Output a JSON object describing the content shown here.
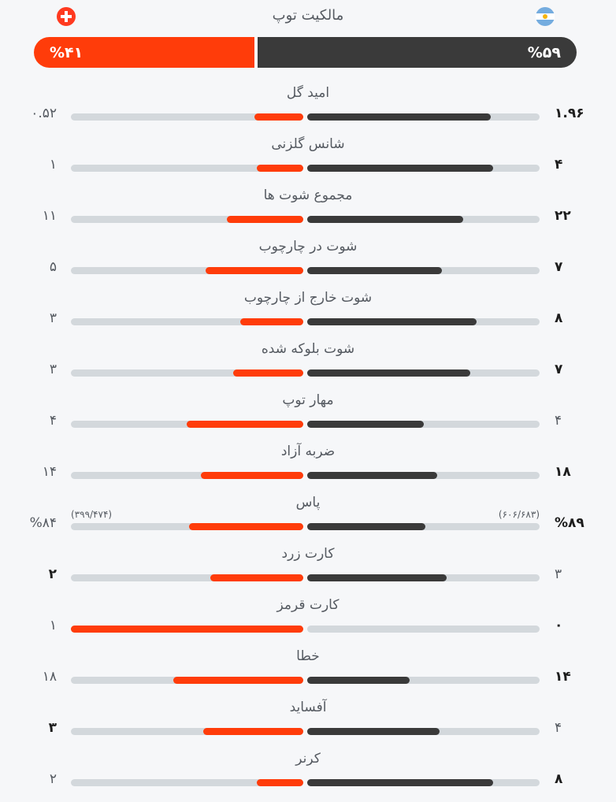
{
  "colors": {
    "away": "#ff3c0a",
    "home": "#3a3a3a",
    "track": "#d3d8dc"
  },
  "teams": {
    "left": {
      "flag_icon": "switzerland-flag-icon"
    },
    "right": {
      "flag_icon": "argentina-flag-icon"
    }
  },
  "possession": {
    "label": "مالکیت توپ",
    "left": "%۴۱",
    "right": "%۵۹",
    "left_fraction": 0.41,
    "right_fraction": 0.59
  },
  "stats": [
    {
      "label": "امید گل",
      "left": "۰.۵۲",
      "right": "۱.۹۶",
      "left_fill": 0.21,
      "right_fill": 0.79,
      "bold": "right"
    },
    {
      "label": "شانس گلزنی",
      "left": "۱",
      "right": "۴",
      "left_fill": 0.2,
      "right_fill": 0.8,
      "bold": "right"
    },
    {
      "label": "مجموع شوت ها",
      "left": "۱۱",
      "right": "۲۲",
      "left_fill": 0.33,
      "right_fill": 0.67,
      "bold": "right"
    },
    {
      "label": "شوت در چارچوب",
      "left": "۵",
      "right": "۷",
      "left_fill": 0.42,
      "right_fill": 0.58,
      "bold": "right"
    },
    {
      "label": "شوت خارج از چارچوب",
      "left": "۳",
      "right": "۸",
      "left_fill": 0.27,
      "right_fill": 0.73,
      "bold": "right"
    },
    {
      "label": "شوت بلوکه شده",
      "left": "۳",
      "right": "۷",
      "left_fill": 0.3,
      "right_fill": 0.7,
      "bold": "right"
    },
    {
      "label": "مهار توپ",
      "left": "۴",
      "right": "۴",
      "left_fill": 0.5,
      "right_fill": 0.5,
      "bold": "none"
    },
    {
      "label": "ضربه آزاد",
      "left": "۱۴",
      "right": "۱۸",
      "left_fill": 0.44,
      "right_fill": 0.56,
      "bold": "right"
    },
    {
      "label": "پاس",
      "left": "%۸۴",
      "right": "%۸۹",
      "left_sub": "(۳۹۹/۴۷۴)",
      "right_sub": "(۶۰۶/۶۸۳)",
      "left_fill": 0.49,
      "right_fill": 0.51,
      "bold": "right"
    },
    {
      "label": "کارت زرد",
      "left": "۲",
      "right": "۳",
      "left_fill": 0.4,
      "right_fill": 0.6,
      "bold": "left"
    },
    {
      "label": "کارت قرمز",
      "left": "۱",
      "right": "۰",
      "left_fill": 1.0,
      "right_fill": 0.0,
      "bold": "right"
    },
    {
      "label": "خطا",
      "left": "۱۸",
      "right": "۱۴",
      "left_fill": 0.56,
      "right_fill": 0.44,
      "bold": "right"
    },
    {
      "label": "آفساید",
      "left": "۳",
      "right": "۴",
      "left_fill": 0.43,
      "right_fill": 0.57,
      "bold": "left"
    },
    {
      "label": "کرنر",
      "left": "۲",
      "right": "۸",
      "left_fill": 0.2,
      "right_fill": 0.8,
      "bold": "right"
    }
  ]
}
